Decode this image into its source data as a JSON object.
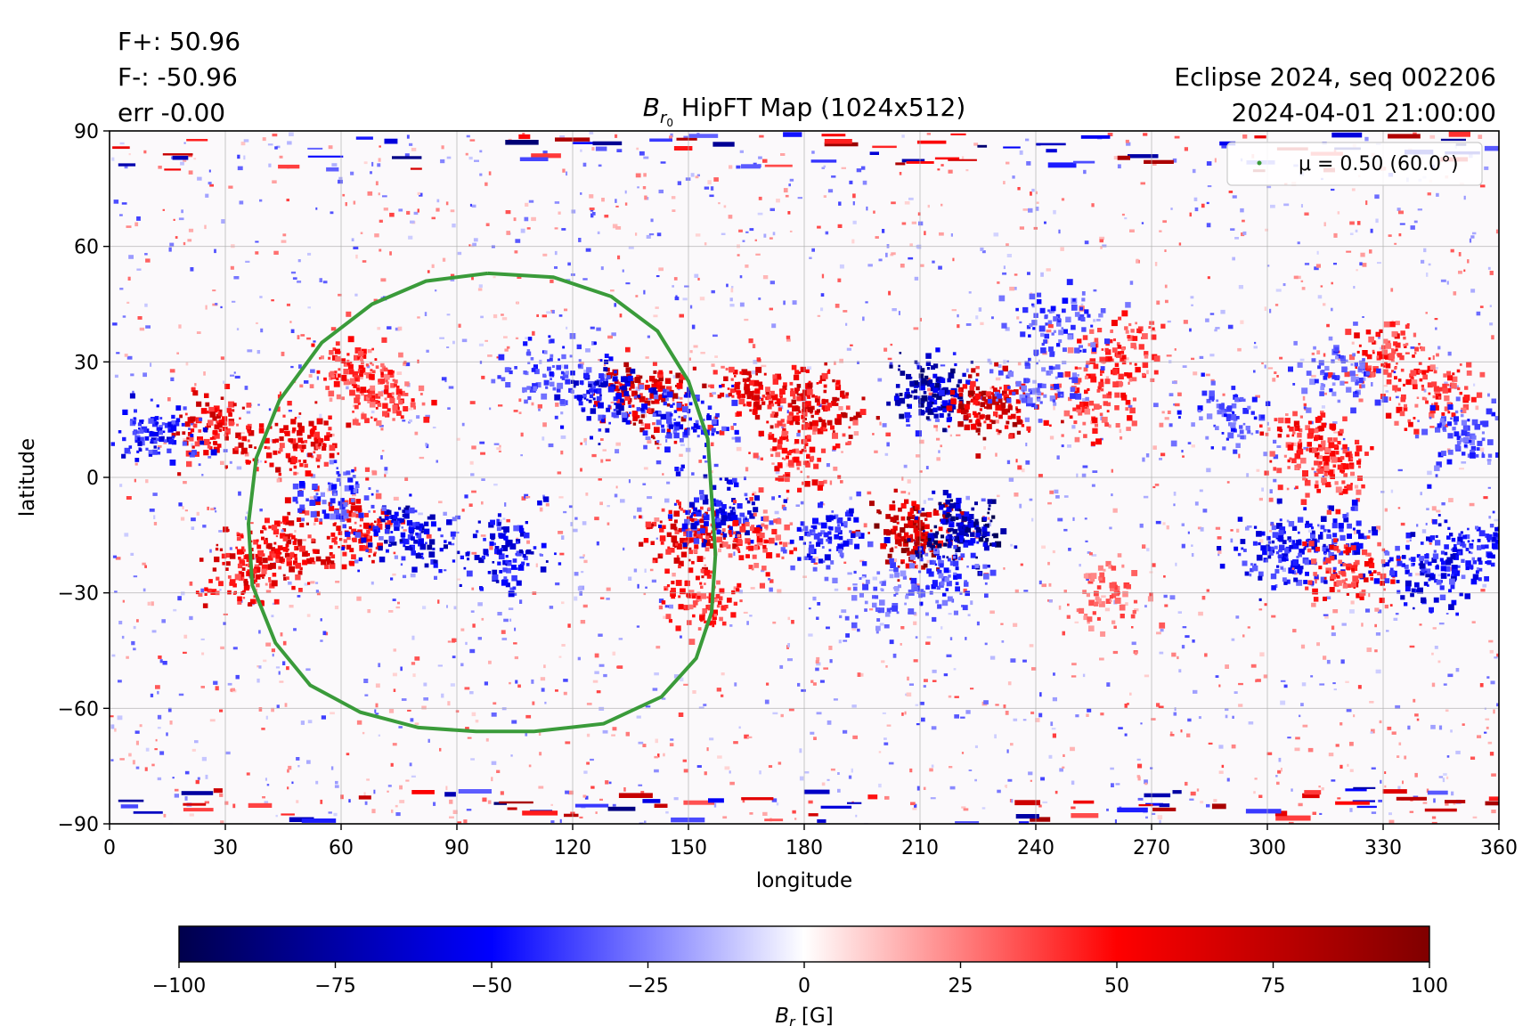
{
  "header": {
    "flux_plus": "F+: 50.96",
    "flux_minus": "F-: -50.96",
    "error": "err -0.00",
    "event": "Eclipse 2024, seq 002206",
    "timestamp": "2024-04-01 21:00:00"
  },
  "chart_data": {
    "type": "heatmap",
    "title_symbol": "B",
    "title_subscript": "r",
    "title_subsub": "0",
    "title_rest": " HipFT Map (1024x512)",
    "xlabel": "longitude",
    "ylabel": "latitude",
    "xlim": [
      0,
      360
    ],
    "ylim": [
      -90,
      90
    ],
    "xticks": [
      0,
      30,
      60,
      90,
      120,
      150,
      180,
      210,
      240,
      270,
      300,
      330,
      360
    ],
    "yticks": [
      90,
      60,
      30,
      0,
      -30,
      -60,
      -90
    ],
    "ytick_labels": [
      "90",
      "60",
      "30",
      "0",
      "−30",
      "−60",
      "−90"
    ],
    "grid": true,
    "colormap": "seismic",
    "colorbar": {
      "min": -100,
      "max": 100,
      "ticks": [
        -100,
        -75,
        -50,
        -25,
        0,
        25,
        50,
        75,
        100
      ],
      "tick_labels": [
        "−100",
        "−75",
        "−50",
        "−25",
        "0",
        "25",
        "50",
        "75",
        "100"
      ],
      "label_symbol": "B",
      "label_sub": "r",
      "label_unit": " [G]",
      "colors": [
        "#00004c",
        "#0000ff",
        "#ffffff",
        "#ff0000",
        "#800000"
      ]
    },
    "legend": {
      "position": "top-right",
      "entry": "μ = 0.50 (60.0°)",
      "color": "#3a9b3a"
    },
    "contour": {
      "name": "μ = 0.50 (60.0°)",
      "color": "#3a9b3a",
      "points": [
        [
          98,
          53
        ],
        [
          115,
          52
        ],
        [
          130,
          47
        ],
        [
          142,
          38
        ],
        [
          150,
          25
        ],
        [
          155,
          10
        ],
        [
          156,
          -5
        ],
        [
          157,
          -20
        ],
        [
          156,
          -35
        ],
        [
          152,
          -47
        ],
        [
          143,
          -57
        ],
        [
          128,
          -64
        ],
        [
          110,
          -66
        ],
        [
          95,
          -66
        ],
        [
          80,
          -65
        ],
        [
          65,
          -61
        ],
        [
          52,
          -54
        ],
        [
          43,
          -43
        ],
        [
          37,
          -28
        ],
        [
          36,
          -12
        ],
        [
          38,
          5
        ],
        [
          44,
          20
        ],
        [
          55,
          35
        ],
        [
          68,
          45
        ],
        [
          82,
          51
        ],
        [
          98,
          53
        ]
      ]
    },
    "active_regions": [
      {
        "lon": 208,
        "lat": -14,
        "sign": 1,
        "amp": 100
      },
      {
        "lon": 220,
        "lat": -13,
        "sign": -1,
        "amp": 100
      },
      {
        "lon": 212,
        "lat": 22,
        "sign": -1,
        "amp": 90
      },
      {
        "lon": 228,
        "lat": 18,
        "sign": 1,
        "amp": 90
      },
      {
        "lon": 182,
        "lat": 19,
        "sign": 1,
        "amp": 80
      },
      {
        "lon": 166,
        "lat": 22,
        "sign": 1,
        "amp": 70
      },
      {
        "lon": 178,
        "lat": 8,
        "sign": 1,
        "amp": 60
      },
      {
        "lon": 138,
        "lat": 22,
        "sign": 1,
        "amp": 85
      },
      {
        "lon": 128,
        "lat": 22,
        "sign": -1,
        "amp": 70
      },
      {
        "lon": 148,
        "lat": 15,
        "sign": -1,
        "amp": 60
      },
      {
        "lon": 26,
        "lat": 12,
        "sign": 1,
        "amp": 75
      },
      {
        "lon": 12,
        "lat": 12,
        "sign": -1,
        "amp": 65
      },
      {
        "lon": 48,
        "lat": 10,
        "sign": 1,
        "amp": 70
      },
      {
        "lon": 45,
        "lat": -18,
        "sign": 1,
        "amp": 75
      },
      {
        "lon": 35,
        "lat": -24,
        "sign": 1,
        "amp": 70
      },
      {
        "lon": 64,
        "lat": -13,
        "sign": 1,
        "amp": 65
      },
      {
        "lon": 77,
        "lat": -15,
        "sign": -1,
        "amp": 80
      },
      {
        "lon": 102,
        "lat": -19,
        "sign": -1,
        "amp": 70
      },
      {
        "lon": 58,
        "lat": -5,
        "sign": -1,
        "amp": 50
      },
      {
        "lon": 150,
        "lat": -14,
        "sign": 1,
        "amp": 75
      },
      {
        "lon": 157,
        "lat": -9,
        "sign": -1,
        "amp": 70
      },
      {
        "lon": 153,
        "lat": -32,
        "sign": 1,
        "amp": 55
      },
      {
        "lon": 165,
        "lat": -15,
        "sign": 1,
        "amp": 55
      },
      {
        "lon": 185,
        "lat": -14,
        "sign": -1,
        "amp": 60
      },
      {
        "lon": 215,
        "lat": -25,
        "sign": -1,
        "amp": 50
      },
      {
        "lon": 255,
        "lat": 20,
        "sign": 1,
        "amp": 55
      },
      {
        "lon": 262,
        "lat": 33,
        "sign": 1,
        "amp": 55
      },
      {
        "lon": 245,
        "lat": 40,
        "sign": -1,
        "amp": 50
      },
      {
        "lon": 240,
        "lat": 24,
        "sign": -1,
        "amp": 45
      },
      {
        "lon": 302,
        "lat": -19,
        "sign": -1,
        "amp": 65
      },
      {
        "lon": 316,
        "lat": -17,
        "sign": -1,
        "amp": 65
      },
      {
        "lon": 320,
        "lat": -24,
        "sign": 1,
        "amp": 60
      },
      {
        "lon": 340,
        "lat": -23,
        "sign": -1,
        "amp": 70
      },
      {
        "lon": 355,
        "lat": -18,
        "sign": -1,
        "amp": 60
      },
      {
        "lon": 310,
        "lat": 10,
        "sign": 1,
        "amp": 60
      },
      {
        "lon": 315,
        "lat": 3,
        "sign": 1,
        "amp": 55
      },
      {
        "lon": 330,
        "lat": 32,
        "sign": 1,
        "amp": 60
      },
      {
        "lon": 342,
        "lat": 22,
        "sign": 1,
        "amp": 55
      },
      {
        "lon": 318,
        "lat": 28,
        "sign": -1,
        "amp": 45
      },
      {
        "lon": 290,
        "lat": 16,
        "sign": -1,
        "amp": 50
      },
      {
        "lon": 350,
        "lat": 12,
        "sign": -1,
        "amp": 50
      },
      {
        "lon": 70,
        "lat": 22,
        "sign": 1,
        "amp": 55
      },
      {
        "lon": 62,
        "lat": 28,
        "sign": 1,
        "amp": 55
      },
      {
        "lon": 112,
        "lat": 28,
        "sign": -1,
        "amp": 50
      },
      {
        "lon": 258,
        "lat": -30,
        "sign": 1,
        "amp": 40
      },
      {
        "lon": 200,
        "lat": -32,
        "sign": -1,
        "amp": 40
      }
    ]
  }
}
